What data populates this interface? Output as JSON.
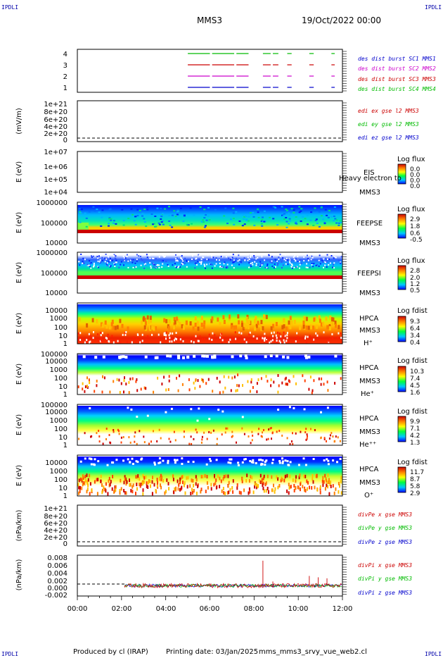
{
  "header": {
    "corner_tl": "IPDLI",
    "corner_tr": "IPDLI",
    "corner_bl": "IPDLI",
    "corner_br": "IPDLI",
    "spacecraft": "MMS3",
    "date": "19/Oct/2022 00:00"
  },
  "footer": {
    "producer": "Produced by cl (IRAP)",
    "printing": "Printing date: 03/Jan/2025",
    "file": "mms_mms3_srvy_vue_web2.cl"
  },
  "colors": {
    "red": "#cc0000",
    "magenta": "#cc00cc",
    "green": "#00bb00",
    "blue": "#0000cc"
  },
  "chart_data": {
    "type": "multi-panel",
    "x_axis": {
      "range": [
        "00:00",
        "12:00"
      ],
      "tick_labels": [
        "00:00",
        "02:00",
        "04:00",
        "06:00",
        "08:00",
        "10:00",
        "12:00"
      ]
    },
    "panels": [
      {
        "type": "timeline",
        "y_ticks": [
          "4",
          "3",
          "2",
          "1"
        ],
        "legend": [
          {
            "label": "des dist burst SC1 MMS1",
            "color": "#0000cc"
          },
          {
            "label": "des dist burst SC2 MMS2",
            "color": "#cc00cc"
          },
          {
            "label": "des dist burst SC3 MMS3",
            "color": "#cc0000"
          },
          {
            "label": "des dist burst SC4 MMS4",
            "color": "#00bb00"
          }
        ],
        "segments_hours": [
          [
            5.0,
            6.0
          ],
          [
            6.1,
            7.1
          ],
          [
            7.2,
            7.75
          ],
          [
            8.4,
            8.75
          ],
          [
            8.85,
            9.1
          ],
          [
            9.5,
            9.7
          ],
          [
            10.5,
            10.7
          ],
          [
            11.5,
            11.65
          ]
        ]
      },
      {
        "type": "line",
        "ylabel": "(mV/m)",
        "y_ticks": [
          "1e+21",
          "8e+20",
          "6e+20",
          "4e+20",
          "2e+20",
          "0"
        ],
        "legend": [
          {
            "label": "edi ex gse l2 MMS3",
            "color": "#cc0000"
          },
          {
            "label": "edi ey gse l2 MMS3",
            "color": "#00bb00"
          },
          {
            "label": "edi ez gse l2 MMS3",
            "color": "#0000cc"
          }
        ]
      },
      {
        "type": "spectrogram",
        "ylabel": "E (eV)",
        "y_ticks": [
          "1e+07",
          "1e+06",
          "1e+05",
          "1e+04"
        ],
        "labels": [
          "EIS",
          "MMS3"
        ],
        "overlay_text": "Heavy electron to",
        "colorbar": {
          "title": "Log flux",
          "ticks": [
            "0.0",
            "0.0",
            "0.0",
            "0.0"
          ]
        }
      },
      {
        "type": "spectrogram",
        "ylabel": "E (eV)",
        "y_ticks": [
          "1000000",
          "100000",
          "10000"
        ],
        "labels": [
          "FEEPSE",
          "MMS3"
        ],
        "colorbar": {
          "title": "Log flux",
          "ticks": [
            "2.9",
            "1.8",
            "0.6",
            "-0.5"
          ]
        }
      },
      {
        "type": "spectrogram",
        "ylabel": "E (eV)",
        "y_ticks": [
          "1000000",
          "100000",
          "10000"
        ],
        "labels": [
          "FEEPSI",
          "MMS3"
        ],
        "colorbar": {
          "title": "Log flux",
          "ticks": [
            "2.8",
            "2.0",
            "1.2",
            "0.5"
          ]
        }
      },
      {
        "type": "spectrogram",
        "ylabel": "E (eV)",
        "y_ticks": [
          "10000",
          "1000",
          "100",
          "10",
          "1"
        ],
        "labels": [
          "HPCA",
          "MMS3",
          "H⁺"
        ],
        "colorbar": {
          "title": "Log fdist",
          "ticks": [
            "9.3",
            "6.4",
            "3.4",
            "0.4"
          ]
        }
      },
      {
        "type": "spectrogram",
        "ylabel": "E (eV)",
        "y_ticks": [
          "100000",
          "10000",
          "1000",
          "100",
          "10",
          "1"
        ],
        "labels": [
          "HPCA",
          "MMS3",
          "He⁺"
        ],
        "colorbar": {
          "title": "Log fdist",
          "ticks": [
            "10.3",
            "7.4",
            "4.5",
            "1.6"
          ]
        }
      },
      {
        "type": "spectrogram",
        "ylabel": "E (eV)",
        "y_ticks": [
          "100000",
          "10000",
          "1000",
          "100",
          "10",
          "1"
        ],
        "labels": [
          "HPCA",
          "MMS3",
          "He⁺⁺"
        ],
        "colorbar": {
          "title": "Log fdist",
          "ticks": [
            "9.9",
            "7.1",
            "4.2",
            "1.3"
          ]
        }
      },
      {
        "type": "spectrogram",
        "ylabel": "E (eV)",
        "y_ticks": [
          "10000",
          "1000",
          "100",
          "10",
          "1"
        ],
        "labels": [
          "HPCA",
          "MMS3",
          "O⁺"
        ],
        "colorbar": {
          "title": "Log fdist",
          "ticks": [
            "11.7",
            "8.7",
            "5.8",
            "2.9"
          ]
        }
      },
      {
        "type": "line",
        "ylabel": "(nPa/km)",
        "y_ticks": [
          "1e+21",
          "8e+20",
          "6e+20",
          "4e+20",
          "2e+20",
          "0"
        ],
        "legend": [
          {
            "label": "divPe x gse MMS3",
            "color": "#cc0000"
          },
          {
            "label": "divPe y gse MMS3",
            "color": "#00bb00"
          },
          {
            "label": "divPe z gse MMS3",
            "color": "#0000cc"
          }
        ]
      },
      {
        "type": "line",
        "ylabel": "(nPa/km)",
        "y_ticks": [
          "0.008",
          "0.006",
          "0.004",
          "0.002",
          "0.000",
          "-0.002"
        ],
        "y_range": [
          -0.003,
          0.0088
        ],
        "legend": [
          {
            "label": "divPi x gse MMS3",
            "color": "#cc0000"
          },
          {
            "label": "divPi y gse MMS3",
            "color": "#00bb00"
          },
          {
            "label": "divPi z gse MMS3",
            "color": "#0000cc"
          }
        ],
        "data_start_hour": 2.15,
        "spikes": [
          {
            "hour": 8.4,
            "value": 0.0072
          },
          {
            "hour": 8.85,
            "value": 0.0012
          },
          {
            "hour": 10.5,
            "value": 0.0028
          },
          {
            "hour": 10.9,
            "value": 0.0024
          },
          {
            "hour": 11.3,
            "value": 0.0021
          }
        ]
      }
    ]
  }
}
